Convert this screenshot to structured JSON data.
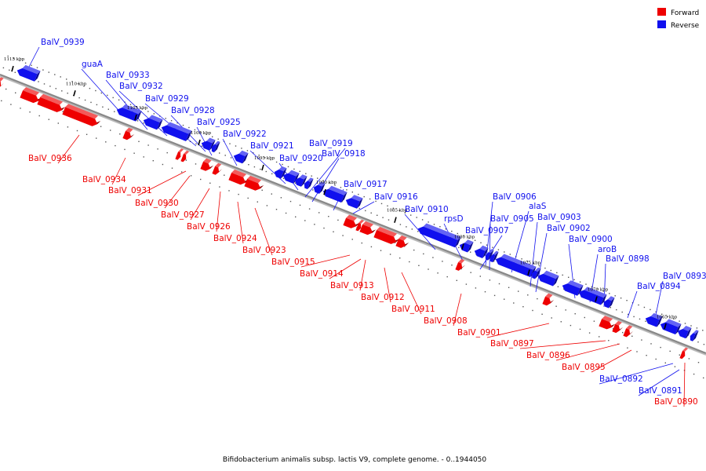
{
  "caption": "Bifidobacterium animalis subsp. lactis V9, complete genome. - 0..1944050",
  "legend": [
    {
      "label": "Forward",
      "color": "#ee0000"
    },
    {
      "label": "Reverse",
      "color": "#1010ee"
    }
  ],
  "colors": {
    "forward": "#ee0000",
    "reverse": "#1010ee",
    "axis": "#888888"
  },
  "ticks": [
    "1115 kbp",
    "1110 kbp",
    "1105 kbp",
    "1100 kbp",
    "1095 kbp",
    "1090 kbp",
    "1085 kbp",
    "1080 kbp",
    "1075 kbp",
    "1070 kbp",
    "1065 kbp"
  ],
  "reverse_labels": [
    "BalV_0939",
    "guaA",
    "BalV_0933",
    "BalV_0932",
    "BalV_0929",
    "BalV_0928",
    "BalV_0925",
    "BalV_0922",
    "BalV_0921",
    "BalV_0920",
    "BalV_0919",
    "BalV_0918",
    "BalV_0917",
    "BalV_0916",
    "BalV_0910",
    "rpsD",
    "BalV_0907",
    "BalV_0906",
    "BalV_0905",
    "alaS",
    "BalV_0903",
    "BalV_0902",
    "BalV_0900",
    "aroB",
    "BalV_0898",
    "BalV_0893",
    "BalV_0894",
    "BalV_0892",
    "BalV_0891"
  ],
  "forward_labels": [
    "BalV_0936",
    "BalV_0934",
    "BalV_0931",
    "BalV_0930",
    "BalV_0927",
    "BalV_0926",
    "BalV_0924",
    "BalV_0923",
    "BalV_0915",
    "BalV_0914",
    "BalV_0913",
    "BalV_0912",
    "BalV_0911",
    "BalV_0908",
    "BalV_0901",
    "BalV_0897",
    "BalV_0896",
    "BalV_0895",
    "BalV_0890"
  ]
}
